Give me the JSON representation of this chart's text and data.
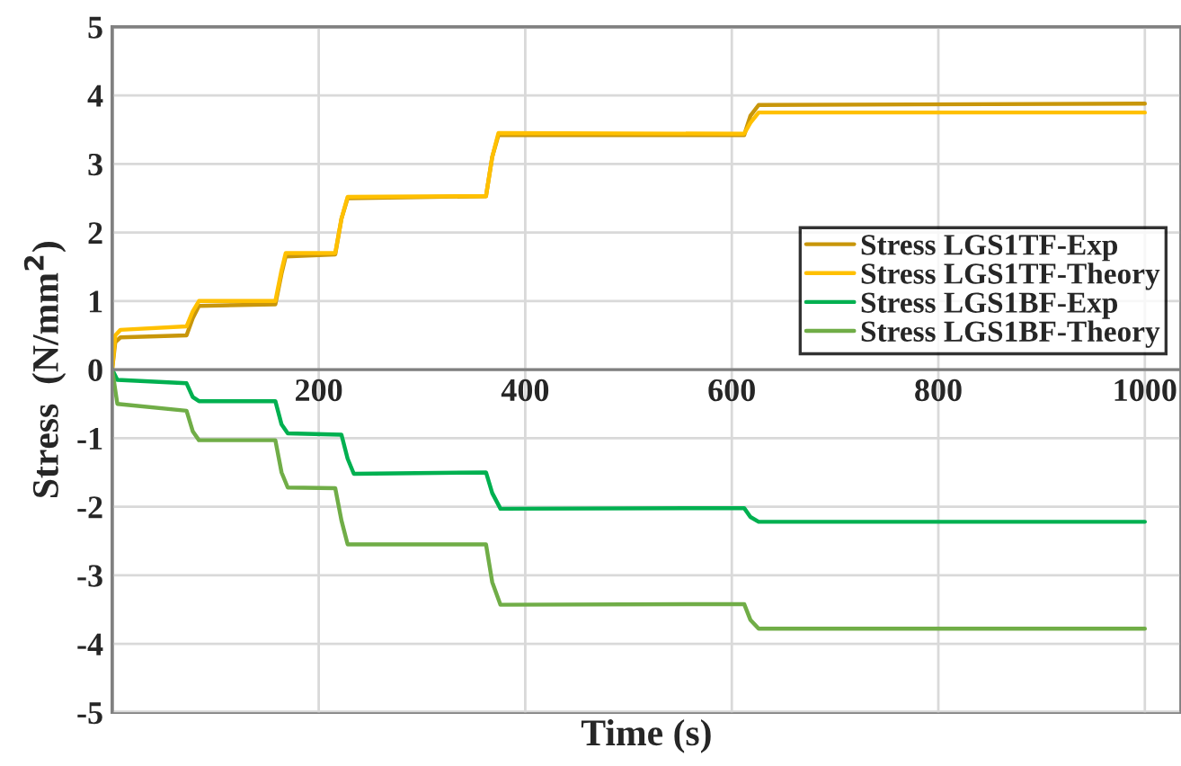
{
  "chart_data": {
    "type": "line",
    "xlabel": "Time (s)",
    "ylabel": "Stress  (N/mm$^{2}$)",
    "xlim": [
      0,
      1035
    ],
    "xticks": [
      {
        "value": 0,
        "label": null
      },
      200,
      400,
      600,
      800,
      1000
    ],
    "ylim": [
      -5,
      5
    ],
    "yticks": [
      -5,
      -4,
      -3,
      -2,
      -1,
      0,
      1,
      2,
      3,
      4,
      5
    ],
    "grid": true,
    "legend": "right",
    "marker": "none",
    "line_style": "solid",
    "series": [
      {
        "name": "Stress LGS1TF-Exp",
        "color": "#c8960a",
        "x": [
          0,
          3,
          8,
          72,
          78,
          84,
          158,
          164,
          168,
          216,
          222,
          228,
          362,
          368,
          374,
          612,
          618,
          626,
          1000
        ],
        "values": [
          0,
          0.4,
          0.47,
          0.5,
          0.75,
          0.93,
          0.95,
          1.4,
          1.65,
          1.68,
          2.2,
          2.5,
          2.53,
          3.1,
          3.42,
          3.42,
          3.7,
          3.86,
          3.88
        ]
      },
      {
        "name": "Stress LGS1TF-Theory",
        "color": "#ffc000",
        "x": [
          0,
          3,
          8,
          72,
          78,
          84,
          158,
          164,
          168,
          216,
          222,
          228,
          362,
          368,
          374,
          612,
          618,
          626,
          1000
        ],
        "values": [
          0,
          0.5,
          0.58,
          0.63,
          0.85,
          1.0,
          1.0,
          1.45,
          1.7,
          1.7,
          2.2,
          2.52,
          2.53,
          3.1,
          3.45,
          3.44,
          3.6,
          3.75,
          3.75
        ]
      },
      {
        "name": "Stress LGS1BF-Exp",
        "color": "#00b050",
        "x": [
          0,
          5,
          72,
          78,
          84,
          158,
          164,
          170,
          222,
          228,
          234,
          362,
          368,
          376,
          612,
          618,
          626,
          1000
        ],
        "values": [
          0,
          -0.15,
          -0.2,
          -0.4,
          -0.46,
          -0.46,
          -0.8,
          -0.93,
          -0.95,
          -1.3,
          -1.52,
          -1.5,
          -1.8,
          -2.03,
          -2.02,
          -2.15,
          -2.22,
          -2.22
        ]
      },
      {
        "name": "Stress LGS1BF-Theory",
        "color": "#70ad47",
        "x": [
          0,
          5,
          72,
          78,
          84,
          158,
          164,
          170,
          216,
          222,
          228,
          362,
          368,
          376,
          612,
          618,
          626,
          1000
        ],
        "values": [
          0,
          -0.5,
          -0.6,
          -0.9,
          -1.03,
          -1.03,
          -1.5,
          -1.72,
          -1.73,
          -2.2,
          -2.55,
          -2.55,
          -3.1,
          -3.43,
          -3.42,
          -3.65,
          -3.78,
          -3.78
        ]
      }
    ]
  }
}
